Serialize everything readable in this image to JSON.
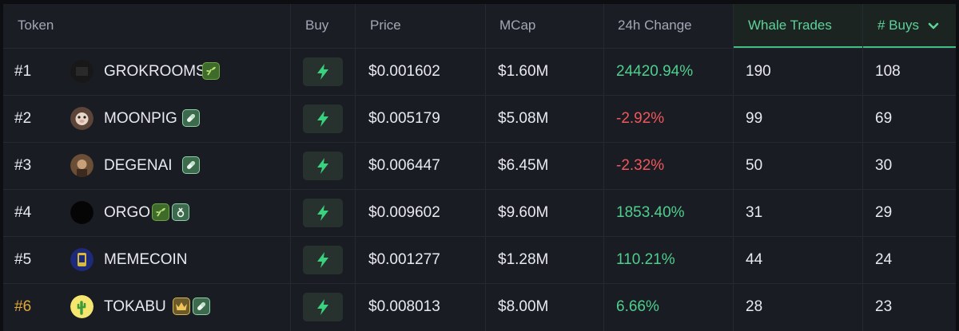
{
  "header": {
    "token": "Token",
    "buy": "Buy",
    "price": "Price",
    "mcap": "MCap",
    "change": "24h Change",
    "whale": "Whale Trades",
    "buys": "# Buys"
  },
  "colors": {
    "positive": "#4ecf8d",
    "negative": "#f0575b",
    "accent": "#3fc081",
    "rank_highlight": "#e0a83a"
  },
  "sort": {
    "column": "# Buys",
    "direction": "descending",
    "icon": "chevron-down-icon"
  },
  "rows": [
    {
      "rank": "#1",
      "name": "GROKROOMS",
      "badges": [
        "sprout"
      ],
      "price": "$0.001602",
      "mcap": "$1.60M",
      "change": "24420.94%",
      "whale": "190",
      "buys": "108"
    },
    {
      "rank": "#2",
      "name": "MOONPIG",
      "badges": [
        "pill"
      ],
      "price": "$0.005179",
      "mcap": "$5.08M",
      "change": "-2.92%",
      "whale": "99",
      "buys": "69"
    },
    {
      "rank": "#3",
      "name": "DEGENAI",
      "badges": [
        "pill"
      ],
      "price": "$0.006447",
      "mcap": "$6.45M",
      "change": "-2.32%",
      "whale": "50",
      "buys": "30"
    },
    {
      "rank": "#4",
      "name": "ORGO",
      "badges": [
        "sprout",
        "lab"
      ],
      "price": "$0.009602",
      "mcap": "$9.60M",
      "change": "1853.40%",
      "whale": "31",
      "buys": "29"
    },
    {
      "rank": "#5",
      "name": "MEMECOIN",
      "badges": [],
      "price": "$0.001277",
      "mcap": "$1.28M",
      "change": "110.21%",
      "whale": "44",
      "buys": "24"
    },
    {
      "rank": "#6",
      "name": "TOKABU",
      "badges": [
        "crown",
        "pill"
      ],
      "price": "$0.008013",
      "mcap": "$8.00M",
      "change": "6.66%",
      "whale": "28",
      "buys": "23"
    }
  ]
}
